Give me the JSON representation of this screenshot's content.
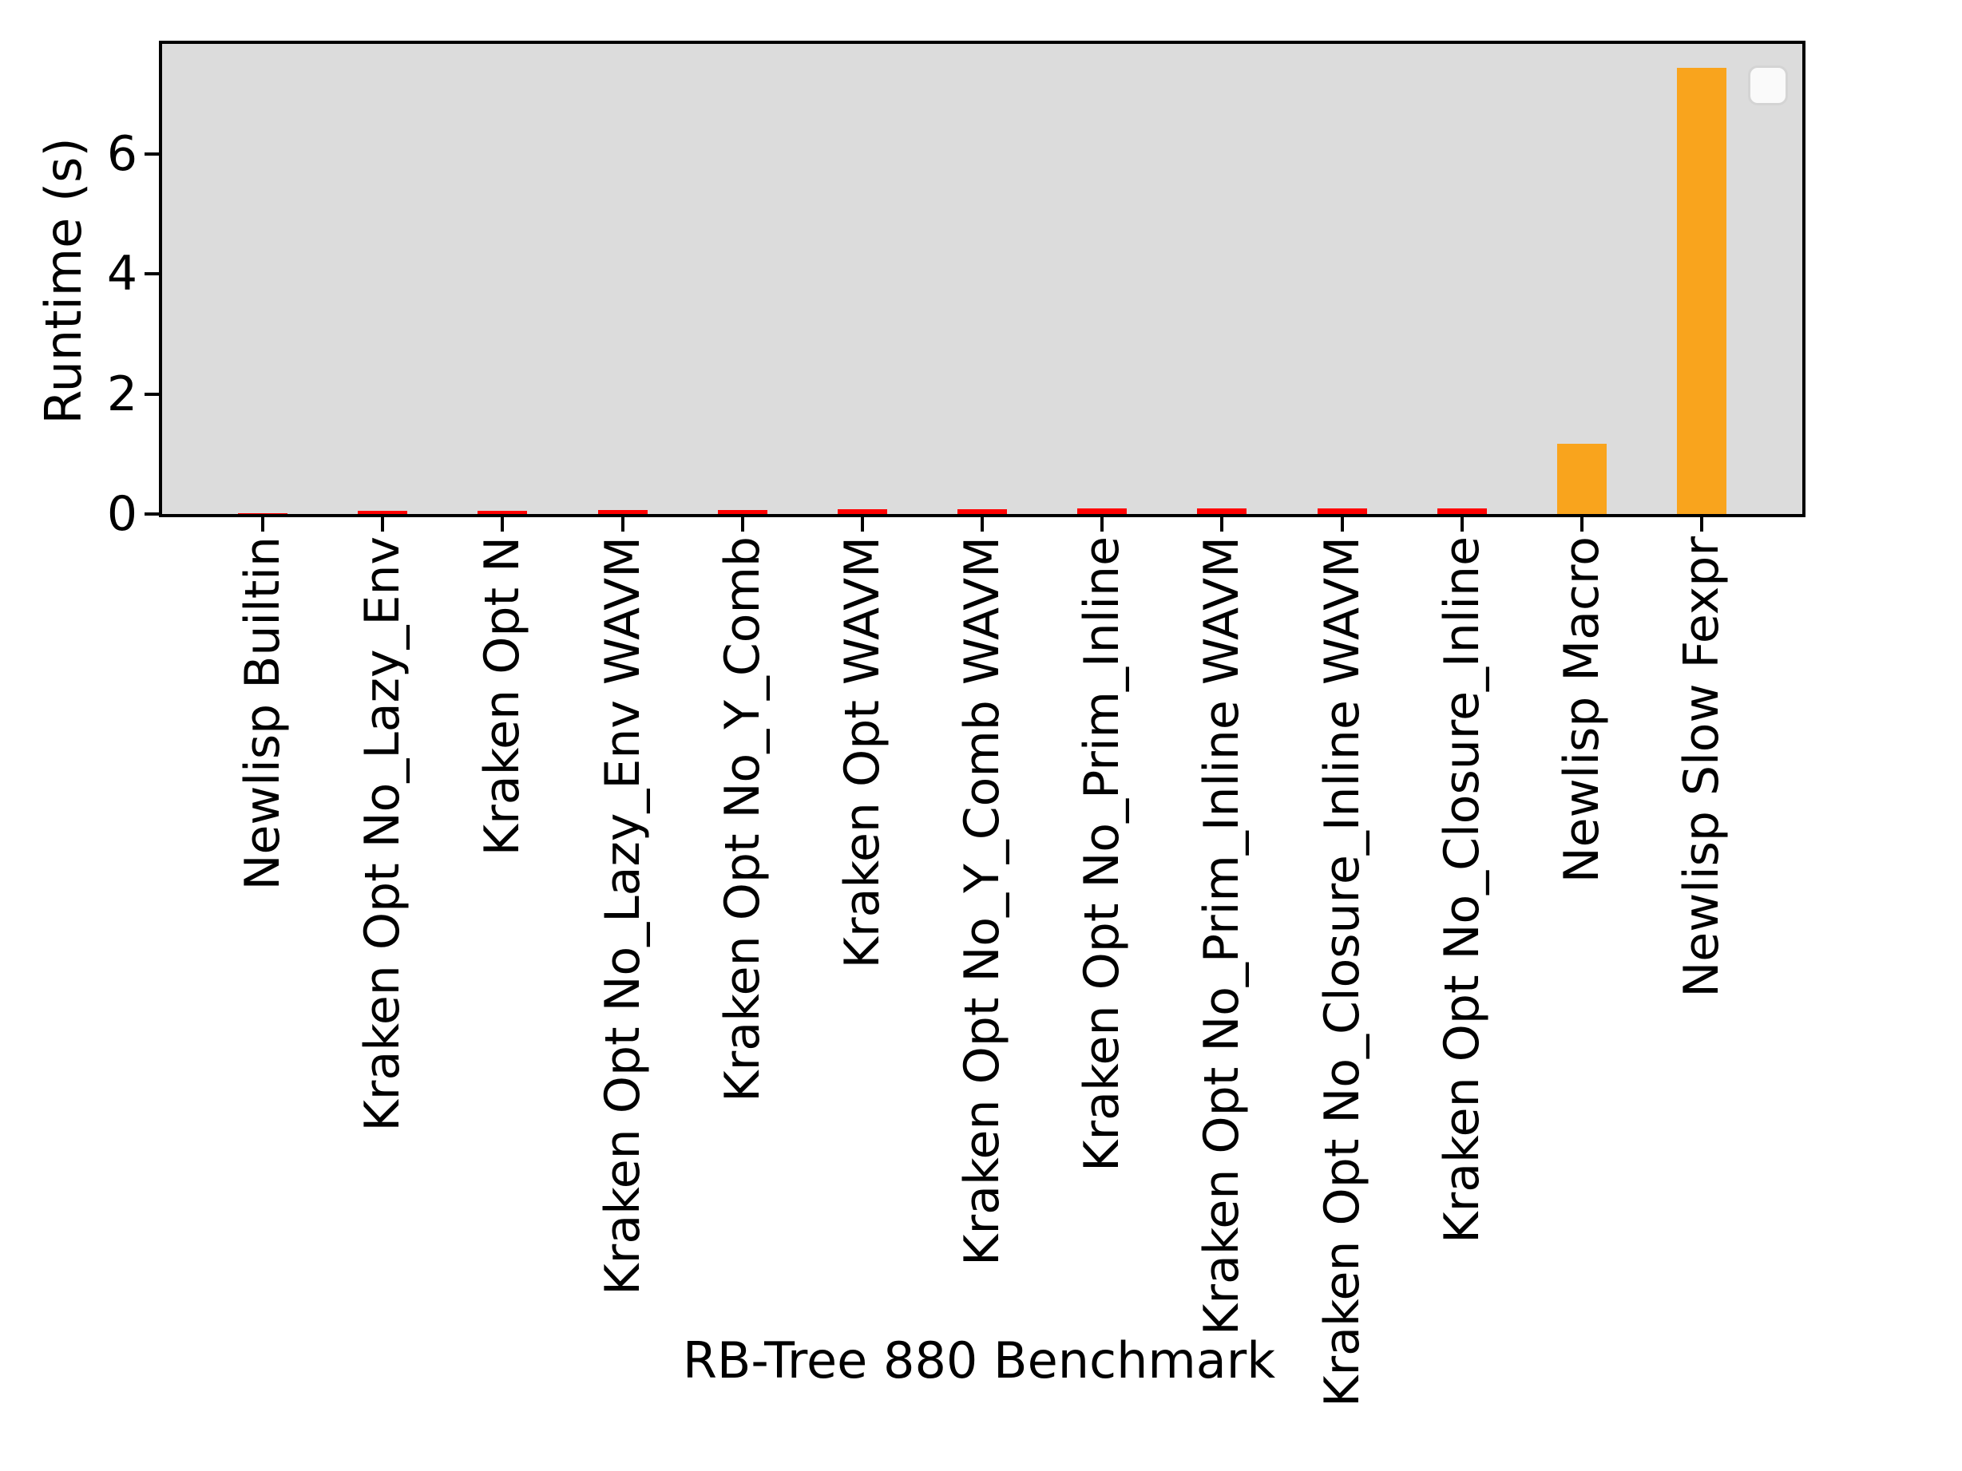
{
  "chart_data": {
    "type": "bar",
    "title": "",
    "xlabel": "RB-Tree 880 Benchmark",
    "ylabel": "Runtime (s)",
    "ylim": [
      0,
      7.84
    ],
    "yticks": [
      0,
      2,
      4,
      6
    ],
    "grid": false,
    "legend_position": "upper-right",
    "legend_entries": [],
    "plot_background_color": "#dcdcdc",
    "spine_color": "#000000",
    "bar_color_small": "#ff0000",
    "bar_color_large": "#f9a41d",
    "categories": [
      "Newlisp Builtin",
      "Kraken Opt No_Lazy_Env",
      "Kraken Opt N",
      "Kraken Opt No_Lazy_Env WAVM",
      "Kraken Opt No_Y_Comb",
      "Kraken Opt WAVM",
      "Kraken Opt No_Y_Comb WAVM",
      "Kraken Opt No_Prim_Inline",
      "Kraken Opt No_Prim_Inline WAVM",
      "Kraken Opt No_Closure_Inline WAVM",
      "Kraken Opt No_Closure_Inline",
      "Newlisp Macro",
      "Newlisp Slow Fexpr"
    ],
    "values": [
      0.01,
      0.05,
      0.06,
      0.07,
      0.07,
      0.08,
      0.08,
      0.09,
      0.1,
      0.1,
      0.1,
      1.17,
      7.44
    ],
    "bar_colors": [
      "#ff0000",
      "#ff0000",
      "#ff0000",
      "#ff0000",
      "#ff0000",
      "#ff0000",
      "#ff0000",
      "#ff0000",
      "#ff0000",
      "#ff0000",
      "#ff0000",
      "#f9a41d",
      "#f9a41d"
    ]
  }
}
